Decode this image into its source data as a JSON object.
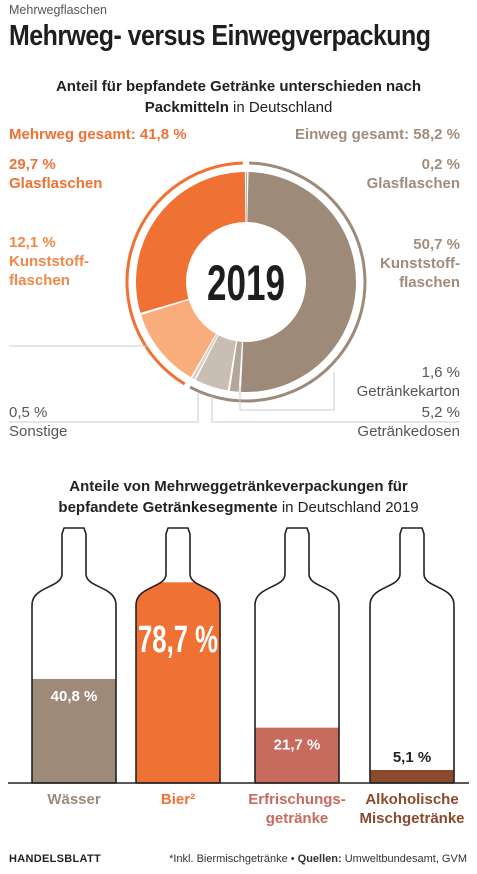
{
  "header": {
    "kicker": "Mehrwegflaschen",
    "title": "Mehrweg- versus Einwegverpackung"
  },
  "donut_section": {
    "subtitle_line1": "Anteil für bepfandete Getränke unterschieden nach",
    "subtitle_line2_bold": "Packmitteln",
    "subtitle_line2_plain": " in Deutschland",
    "year": "2019",
    "mehrweg_total": "Mehrweg gesamt: 41,8 %",
    "einweg_total": "Einweg gesamt: 58,2 %",
    "labels": {
      "mw_glas_value": "29,7 %",
      "mw_glas_name": "Glasflaschen",
      "mw_kunst_value": "12,1 %",
      "mw_kunst_name1": "Kunststoff-",
      "mw_kunst_name2": "flaschen",
      "ew_glas_value": "0,2 %",
      "ew_glas_name": "Glasflaschen",
      "ew_kunst_value": "50,7 %",
      "ew_kunst_name1": "Kunststoff-",
      "ew_kunst_name2": "flaschen",
      "karton_value": "1,6 %",
      "karton_name": "Getränkekarton",
      "dosen_value": "5,2 %",
      "dosen_name": "Getränkedosen",
      "sonst_value": "0,5 %",
      "sonst_name": "Sonstige"
    }
  },
  "bottle_section": {
    "subtitle_line1": "Anteile von Mehrweggetränkeverpackungen für",
    "subtitle_line2_bold": "bepfandete Getränkesegmente",
    "subtitle_line2_plain": " in Deutschland 2019"
  },
  "footer": {
    "brand": "HANDELSBLATT",
    "note": "*Inkl. Biermischgetränke • ",
    "sources_label": "Quellen:",
    "sources": " Umweltbundesamt, GVM"
  },
  "chart_data": [
    {
      "type": "pie",
      "title": "Anteil für bepfandete Getränke unterschieden nach Packmitteln in Deutschland",
      "center_label": "2019",
      "groups": [
        {
          "name": "Mehrweg gesamt",
          "value": 41.8
        },
        {
          "name": "Einweg gesamt",
          "value": 58.2
        }
      ],
      "series": [
        {
          "name": "Einweg Glasflaschen",
          "value": 0.2,
          "color": "#a08c7c"
        },
        {
          "name": "Einweg Kunststoffflaschen",
          "value": 50.7,
          "color": "#9d8a79"
        },
        {
          "name": "Getränkekarton",
          "value": 1.6,
          "color": "#b3a598"
        },
        {
          "name": "Getränkedosen",
          "value": 5.2,
          "color": "#c9beb3"
        },
        {
          "name": "Sonstige",
          "value": 0.5,
          "color": "#d9d0c8"
        },
        {
          "name": "Mehrweg Kunststoffflaschen",
          "value": 12.1,
          "color": "#f9ad7c"
        },
        {
          "name": "Mehrweg Glasflaschen",
          "value": 29.7,
          "color": "#f07134"
        }
      ]
    },
    {
      "type": "bar",
      "title": "Anteile von Mehrweggetränkeverpackungen für bepfandete Getränkesegmente in Deutschland 2019",
      "categories": [
        "Wässer",
        "Bier²",
        "Erfrischungsgetränke",
        "Alkoholische Mischgetränke"
      ],
      "category_lines": [
        [
          "Wässer"
        ],
        [
          "Bier²"
        ],
        [
          "Erfrischungs-",
          "getränke"
        ],
        [
          "Alkoholische",
          "Mischgetränke"
        ]
      ],
      "values": [
        40.8,
        78.7,
        21.7,
        5.1
      ],
      "value_labels": [
        "40,8 %",
        "78,7 %",
        "21,7 %",
        "5,1 %"
      ],
      "colors": [
        "#9d8a79",
        "#f07134",
        "#c96a5e",
        "#8a4a2c"
      ],
      "label_colors": [
        "#9d8a79",
        "#f07134",
        "#c96a5e",
        "#8a4a2c"
      ],
      "ylim": [
        0,
        100
      ]
    }
  ]
}
